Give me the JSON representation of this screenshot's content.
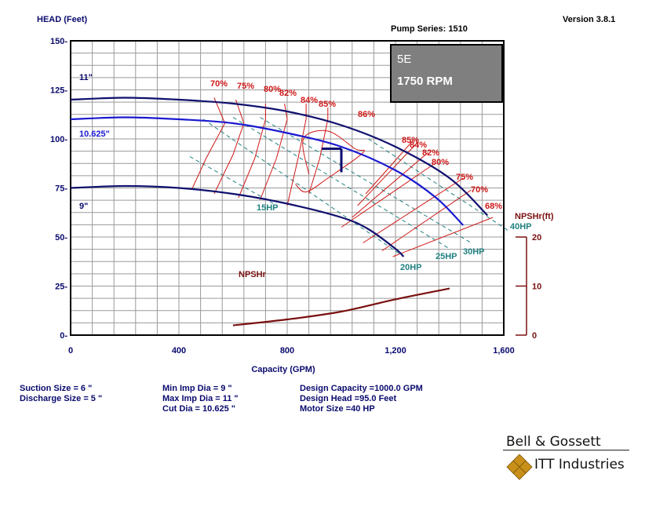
{
  "header": {
    "head_label": "HEAD (Feet)",
    "pump_series": "Pump Series: 1510",
    "version": "Version 3.8.1"
  },
  "model_box": {
    "model": "5E",
    "speed": "1750 RPM"
  },
  "info": {
    "col1": [
      "Suction Size = 6 \"",
      "Discharge Size = 5 \""
    ],
    "col2": [
      "Min Imp Dia = 9 \"",
      "Max Imp Dia = 11 \"",
      "Cut Dia = 10.625 \""
    ],
    "col3": [
      "Design Capacity =1000.0 GPM",
      "Design Head =95.0 Feet",
      "Motor Size =40 HP"
    ]
  },
  "brand": {
    "line1": "Bell & Gossett",
    "line2": "ITT Industries"
  },
  "colors": {
    "axis_text": "#0a0a6e",
    "impeller_curve": "#10106e",
    "cut_curve": "#1a1ad0",
    "efficiency": "#d01818",
    "hp": "#208080",
    "npsh": "#7a1010",
    "model_box": "#7f7f7f",
    "grid": "#9a9a9a"
  },
  "chart_data": {
    "type": "line",
    "xlabel": "Capacity (GPM)",
    "ylabel": "HEAD (Feet)",
    "xlim": [
      0,
      1600
    ],
    "ylim": [
      0,
      150
    ],
    "x_ticks": [
      0,
      400,
      800,
      1200,
      1600
    ],
    "x_tick_labels": [
      "0",
      "400",
      "800",
      "1,200",
      "1,600"
    ],
    "y_ticks": [
      0,
      25,
      50,
      75,
      100,
      125,
      150
    ],
    "y_tick_labels": [
      "0-",
      "25-",
      "50-",
      "75-",
      "100-",
      "125-",
      "150-"
    ],
    "grid": true,
    "secondary_axis": {
      "label": "NPSHr(ft)",
      "ylim": [
        0,
        20
      ],
      "ticks": [
        0,
        10,
        20
      ],
      "tick_labels": [
        "0",
        "10",
        "20"
      ],
      "height_of_head_axis": 50
    },
    "impeller_curves": [
      {
        "name": "11\"",
        "points": [
          [
            0,
            120
          ],
          [
            200,
            121
          ],
          [
            400,
            120
          ],
          [
            600,
            118
          ],
          [
            800,
            114
          ],
          [
            1000,
            107
          ],
          [
            1200,
            96
          ],
          [
            1400,
            80
          ],
          [
            1540,
            61
          ]
        ]
      },
      {
        "name": "10.625\"",
        "points": [
          [
            0,
            110
          ],
          [
            200,
            111
          ],
          [
            400,
            110
          ],
          [
            600,
            108
          ],
          [
            800,
            103
          ],
          [
            1000,
            96
          ],
          [
            1200,
            84
          ],
          [
            1350,
            70
          ],
          [
            1450,
            56
          ]
        ]
      },
      {
        "name": "9\"",
        "points": [
          [
            0,
            75
          ],
          [
            200,
            76
          ],
          [
            400,
            75
          ],
          [
            600,
            72
          ],
          [
            800,
            67
          ],
          [
            1000,
            60
          ],
          [
            1100,
            54
          ],
          [
            1200,
            44
          ],
          [
            1230,
            40
          ]
        ]
      }
    ],
    "efficiency_curves": [
      {
        "label": "70%",
        "points": [
          [
            450,
            75
          ],
          [
            500,
            90
          ],
          [
            570,
            108
          ],
          [
            530,
            121
          ]
        ]
      },
      {
        "label": "75%",
        "points": [
          [
            530,
            72
          ],
          [
            600,
            92
          ],
          [
            640,
            108
          ],
          [
            610,
            120
          ]
        ]
      },
      {
        "label": "80%",
        "points": [
          [
            620,
            70
          ],
          [
            680,
            90
          ],
          [
            720,
            110
          ],
          [
            720,
            118
          ]
        ]
      },
      {
        "label": "82%",
        "points": [
          [
            700,
            69
          ],
          [
            760,
            90
          ],
          [
            800,
            110
          ],
          [
            790,
            118
          ]
        ]
      },
      {
        "label": "84%",
        "points": [
          [
            800,
            66
          ],
          [
            840,
            90
          ],
          [
            870,
            110
          ],
          [
            870,
            118
          ]
        ]
      },
      {
        "label": "85%",
        "points": [
          [
            880,
            72
          ],
          [
            920,
            90
          ],
          [
            950,
            110
          ],
          [
            950,
            116
          ]
        ]
      },
      {
        "label": "86%",
        "points": [
          [
            880,
            82
          ],
          [
            860,
            100
          ],
          [
            950,
            104
          ],
          [
            1050,
            95
          ],
          [
            1080,
            93
          ],
          [
            950,
            80
          ],
          [
            870,
            73
          ],
          [
            830,
            77
          ]
        ]
      },
      {
        "label": "85%",
        "points": [
          [
            1090,
            72
          ],
          [
            1270,
            100
          ]
        ]
      },
      {
        "label": "84%",
        "points": [
          [
            1060,
            66
          ],
          [
            1280,
            98
          ]
        ]
      },
      {
        "label": "82%",
        "points": [
          [
            1040,
            60
          ],
          [
            1320,
            93
          ]
        ]
      },
      {
        "label": "80%",
        "points": [
          [
            1000,
            55
          ],
          [
            1340,
            87
          ]
        ]
      },
      {
        "label": "75%",
        "points": [
          [
            1080,
            47
          ],
          [
            1450,
            80
          ]
        ]
      },
      {
        "label": "70%",
        "points": [
          [
            1150,
            43
          ],
          [
            1480,
            74
          ]
        ]
      },
      {
        "label": "68%",
        "points": [
          [
            1190,
            40
          ],
          [
            1560,
            60
          ]
        ]
      }
    ],
    "hp_lines": [
      {
        "label": "15HP",
        "points": [
          [
            440,
            91
          ],
          [
            750,
            67
          ]
        ]
      },
      {
        "label": "20HP",
        "points": [
          [
            490,
            110
          ],
          [
            1230,
            40
          ]
        ]
      },
      {
        "label": "25HP",
        "points": [
          [
            600,
            111
          ],
          [
            1400,
            44
          ]
        ]
      },
      {
        "label": "30HP",
        "points": [
          [
            700,
            111
          ],
          [
            1480,
            47
          ]
        ]
      },
      {
        "label": "40HP",
        "points": [
          [
            1100,
            100
          ],
          [
            1620,
            53
          ]
        ]
      }
    ],
    "npshr": {
      "label": "NPSHr",
      "points": [
        [
          600,
          2
        ],
        [
          800,
          3.2
        ],
        [
          1000,
          4.8
        ],
        [
          1200,
          7.3
        ],
        [
          1400,
          9.5
        ]
      ]
    },
    "design_point": {
      "capacity": 1000,
      "head": 95
    }
  }
}
